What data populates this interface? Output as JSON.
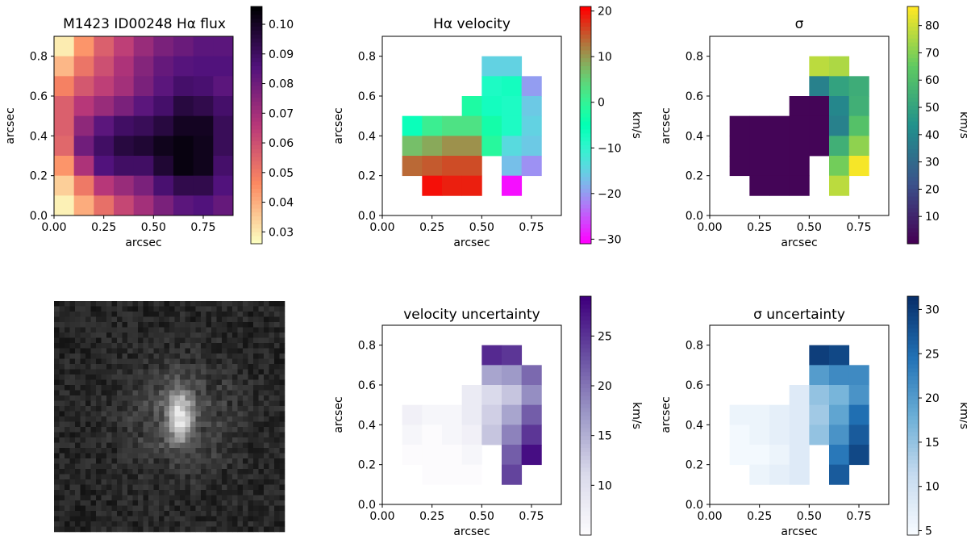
{
  "figure": {
    "panel_order": [
      "flux",
      "velocity",
      "sigma",
      "image",
      "velocity_err",
      "sigma_err"
    ]
  },
  "chart_data": [
    {
      "id": "flux",
      "type": "heatmap",
      "title": "M1423 ID00248 Hα flux",
      "xlabel": "arcsec",
      "ylabel": "arcsec",
      "xlim": [
        0,
        0.9
      ],
      "ylim": [
        0,
        0.9
      ],
      "xticks": [
        "0.00",
        "0.25",
        "0.50",
        "0.75"
      ],
      "yticks": [
        "0.0",
        "0.2",
        "0.4",
        "0.6",
        "0.8"
      ],
      "colormap": "magma_r",
      "colorbar": {
        "label": "",
        "range": [
          0.026,
          0.106
        ],
        "ticks": [
          "0.03",
          "0.04",
          "0.05",
          "0.06",
          "0.07",
          "0.08",
          "0.09",
          "0.10"
        ]
      },
      "grid": {
        "rows": 9,
        "cols": 9,
        "cell": 0.1,
        "row_order": "top_to_bottom"
      },
      "cells": [
        [
          0.029,
          0.044,
          0.056,
          0.064,
          0.072,
          0.078,
          0.081,
          0.084,
          0.084
        ],
        [
          0.038,
          0.051,
          0.06,
          0.068,
          0.076,
          0.082,
          0.085,
          0.086,
          0.086
        ],
        [
          0.048,
          0.058,
          0.064,
          0.07,
          0.078,
          0.084,
          0.089,
          0.088,
          0.084
        ],
        [
          0.056,
          0.066,
          0.072,
          0.078,
          0.084,
          0.089,
          0.096,
          0.094,
          0.089
        ],
        [
          0.056,
          0.074,
          0.084,
          0.09,
          0.092,
          0.096,
          0.101,
          0.101,
          0.092
        ],
        [
          0.054,
          0.08,
          0.09,
          0.096,
          0.098,
          0.102,
          0.104,
          0.102,
          0.092
        ],
        [
          0.044,
          0.068,
          0.086,
          0.09,
          0.09,
          0.098,
          0.104,
          0.102,
          0.089
        ],
        [
          0.034,
          0.05,
          0.066,
          0.072,
          0.078,
          0.088,
          0.094,
          0.094,
          0.086
        ],
        [
          0.028,
          0.04,
          0.052,
          0.062,
          0.07,
          0.078,
          0.084,
          0.086,
          0.082
        ]
      ]
    },
    {
      "id": "velocity",
      "type": "heatmap",
      "title": "Hα velocity",
      "xlabel": "arcsec",
      "ylabel": "arcsec",
      "xlim": [
        0,
        0.9
      ],
      "ylim": [
        0,
        0.9
      ],
      "xticks": [
        "0.00",
        "0.25",
        "0.50",
        "0.75"
      ],
      "yticks": [
        "0.0",
        "0.2",
        "0.4",
        "0.6",
        "0.8"
      ],
      "colormap": "rainbow",
      "colorbar": {
        "label": "km/s",
        "range": [
          -31,
          21
        ],
        "ticks": [
          "20",
          "10",
          "0",
          "−10",
          "−20",
          "−30"
        ]
      },
      "grid": {
        "rows": 9,
        "cols": 9,
        "cell": 0.1,
        "row_order": "top_to_bottom"
      },
      "cells": [
        [
          null,
          null,
          null,
          null,
          null,
          null,
          null,
          null,
          null
        ],
        [
          null,
          null,
          null,
          null,
          null,
          -15,
          -15,
          null,
          null
        ],
        [
          null,
          null,
          null,
          null,
          null,
          -8,
          -7,
          -20,
          null
        ],
        [
          null,
          null,
          null,
          null,
          -2,
          -7,
          -8,
          -16,
          null
        ],
        [
          null,
          -6,
          1,
          3,
          3,
          -3,
          -8,
          -15,
          null
        ],
        [
          null,
          7,
          9,
          11,
          11,
          -1,
          -14,
          -16,
          null
        ],
        [
          null,
          14,
          15,
          16,
          16,
          null,
          -17,
          -21,
          null
        ],
        [
          null,
          null,
          20,
          19,
          19,
          null,
          -30,
          null,
          null
        ],
        [
          null,
          null,
          null,
          null,
          null,
          null,
          null,
          null,
          null
        ]
      ]
    },
    {
      "id": "sigma",
      "type": "heatmap",
      "title": "σ",
      "xlabel": "arcsec",
      "ylabel": "arcsec",
      "xlim": [
        0,
        0.9
      ],
      "ylim": [
        0,
        0.9
      ],
      "xticks": [
        "0.00",
        "0.25",
        "0.50",
        "0.75"
      ],
      "yticks": [
        "0.0",
        "0.2",
        "0.4",
        "0.6",
        "0.8"
      ],
      "colormap": "viridis",
      "colorbar": {
        "label": "km/s",
        "range": [
          0,
          87
        ],
        "ticks": [
          "80",
          "70",
          "60",
          "50",
          "40",
          "30",
          "20",
          "10"
        ]
      },
      "grid": {
        "rows": 9,
        "cols": 9,
        "cell": 0.1,
        "row_order": "top_to_bottom"
      },
      "cells": [
        [
          null,
          null,
          null,
          null,
          null,
          null,
          null,
          null,
          null
        ],
        [
          null,
          null,
          null,
          null,
          null,
          78,
          76,
          null,
          null
        ],
        [
          null,
          null,
          null,
          null,
          null,
          38,
          50,
          54,
          null
        ],
        [
          null,
          null,
          null,
          null,
          1,
          1,
          40,
          55,
          null
        ],
        [
          null,
          1,
          1,
          1,
          1,
          1,
          38,
          62,
          null
        ],
        [
          null,
          1,
          1,
          1,
          1,
          1,
          55,
          72,
          null
        ],
        [
          null,
          1,
          1,
          1,
          1,
          null,
          68,
          86,
          null
        ],
        [
          null,
          null,
          1,
          1,
          1,
          null,
          78,
          null,
          null
        ],
        [
          null,
          null,
          null,
          null,
          null,
          null,
          null,
          null,
          null
        ]
      ]
    },
    {
      "id": "velocity_err",
      "type": "heatmap",
      "title": "velocity uncertainty",
      "xlabel": "arcsec",
      "ylabel": "arcsec",
      "xlim": [
        0,
        0.9
      ],
      "ylim": [
        0,
        0.9
      ],
      "xticks": [
        "0.00",
        "0.25",
        "0.50",
        "0.75"
      ],
      "yticks": [
        "0.0",
        "0.2",
        "0.4",
        "0.6",
        "0.8"
      ],
      "colormap": "Purples",
      "colorbar": {
        "label": "km/s",
        "range": [
          5,
          29
        ],
        "ticks": [
          "25",
          "20",
          "15",
          "10"
        ]
      },
      "grid": {
        "rows": 9,
        "cols": 9,
        "cell": 0.1,
        "row_order": "top_to_bottom"
      },
      "cells": [
        [
          null,
          null,
          null,
          null,
          null,
          null,
          null,
          null,
          null
        ],
        [
          null,
          null,
          null,
          null,
          null,
          26,
          25,
          null,
          null
        ],
        [
          null,
          null,
          null,
          null,
          null,
          16,
          17,
          21,
          null
        ],
        [
          null,
          null,
          null,
          null,
          8,
          11,
          13,
          18,
          null
        ],
        [
          null,
          7,
          6,
          6,
          8,
          12,
          16,
          22,
          null
        ],
        [
          null,
          6,
          5,
          6,
          7,
          13,
          19,
          25,
          null
        ],
        [
          null,
          5,
          5,
          5,
          6,
          null,
          22,
          28,
          null
        ],
        [
          null,
          null,
          5,
          5,
          5,
          null,
          24,
          null,
          null
        ],
        [
          null,
          null,
          null,
          null,
          null,
          null,
          null,
          null,
          null
        ]
      ]
    },
    {
      "id": "sigma_err",
      "type": "heatmap",
      "title": "σ uncertainty",
      "xlabel": "arcsec",
      "ylabel": "arcsec",
      "xlim": [
        0,
        0.9
      ],
      "ylim": [
        0,
        0.9
      ],
      "xticks": [
        "0.00",
        "0.25",
        "0.50",
        "0.75"
      ],
      "yticks": [
        "0.0",
        "0.2",
        "0.4",
        "0.6",
        "0.8"
      ],
      "colormap": "Blues",
      "colorbar": {
        "label": "km/s",
        "range": [
          4.5,
          31.5
        ],
        "ticks": [
          "30",
          "25",
          "20",
          "15",
          "10",
          "5"
        ]
      },
      "grid": {
        "rows": 9,
        "cols": 9,
        "cell": 0.1,
        "row_order": "top_to_bottom"
      },
      "cells": [
        [
          null,
          null,
          null,
          null,
          null,
          null,
          null,
          null,
          null
        ],
        [
          null,
          null,
          null,
          null,
          null,
          30,
          29,
          null,
          null
        ],
        [
          null,
          null,
          null,
          null,
          null,
          20,
          22,
          22,
          null
        ],
        [
          null,
          null,
          null,
          null,
          8,
          15,
          17,
          21,
          null
        ],
        [
          null,
          6,
          6,
          7,
          8,
          14,
          19,
          25,
          null
        ],
        [
          null,
          5,
          6,
          7,
          8,
          15,
          21,
          27,
          null
        ],
        [
          null,
          5,
          5,
          6,
          8,
          null,
          24,
          29,
          null
        ],
        [
          null,
          null,
          6,
          7,
          8,
          null,
          27,
          null,
          null
        ],
        [
          null,
          null,
          null,
          null,
          null,
          null,
          null,
          null,
          null
        ]
      ]
    }
  ],
  "image_panel": {
    "type": "grayscale-stamp",
    "description_shape": "bright compact source near center on noisy dark background"
  }
}
